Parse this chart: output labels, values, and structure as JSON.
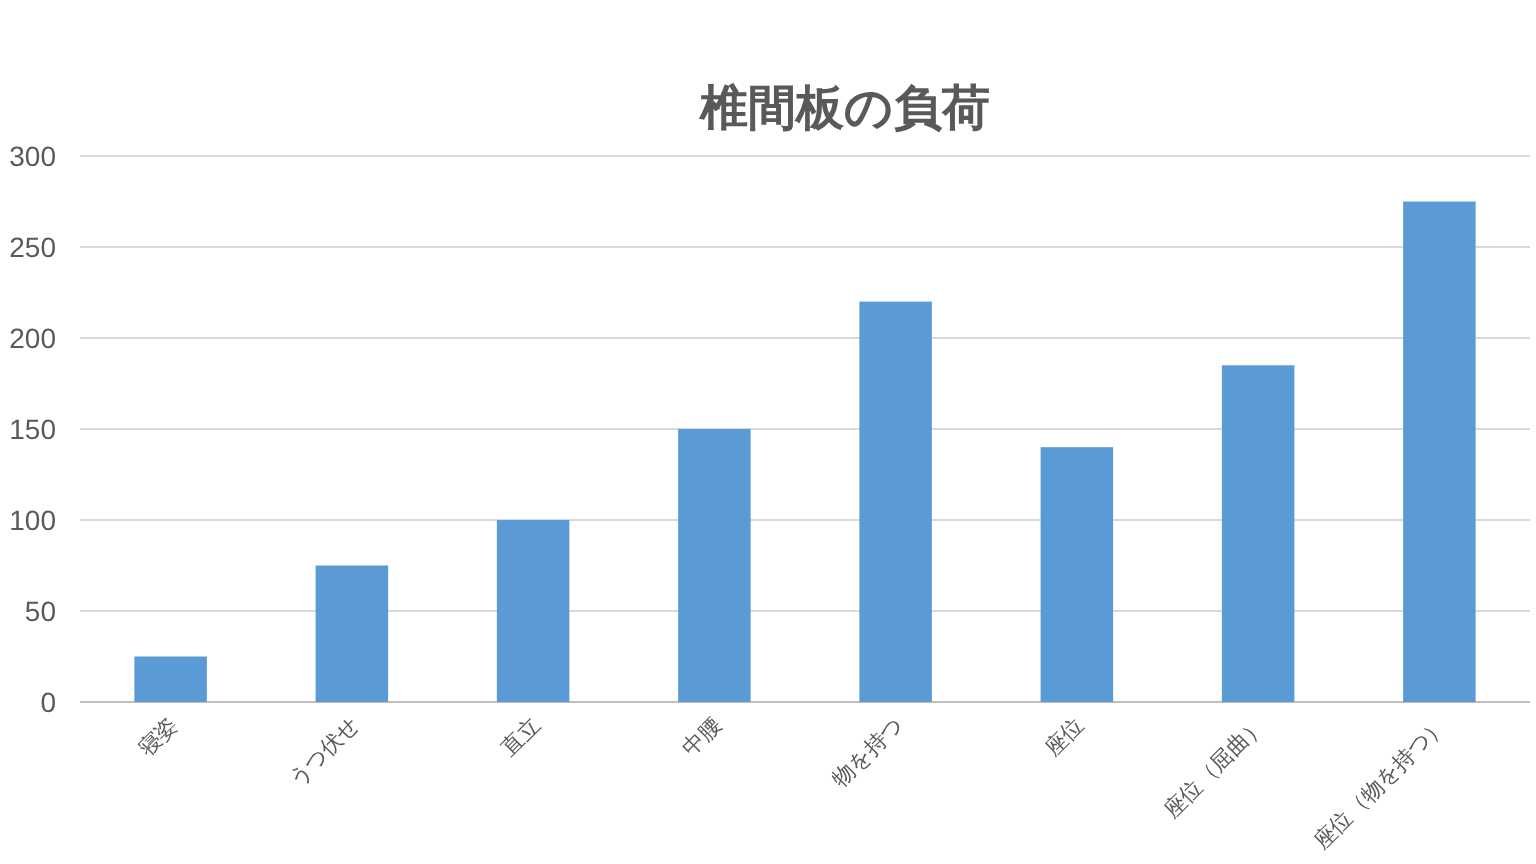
{
  "chart_data": {
    "type": "bar",
    "title": "椎間板の負荷",
    "categories": [
      "寝姿",
      "うつ伏せ",
      "直立",
      "中腰",
      "物を持つ",
      "座位",
      "座位（屈曲）",
      "座位（物を持つ）"
    ],
    "values": [
      25,
      75,
      100,
      150,
      220,
      140,
      185,
      275
    ],
    "color": "#5b9bd5",
    "ylim": [
      0,
      300
    ],
    "yticks": [
      0,
      50,
      100,
      150,
      200,
      250,
      300
    ],
    "grid": "y"
  }
}
